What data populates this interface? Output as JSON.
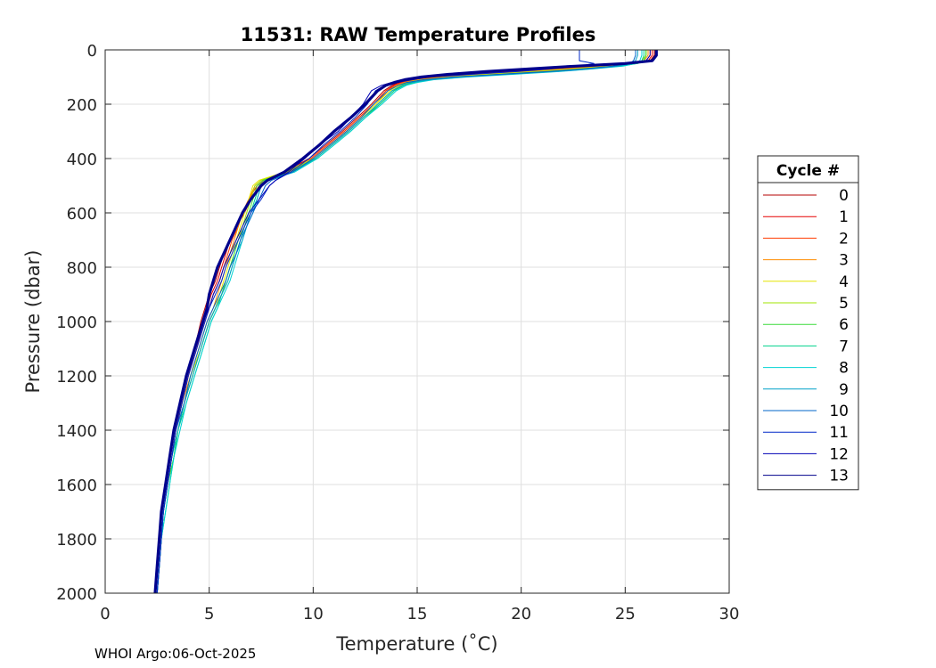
{
  "chart_data": {
    "type": "line",
    "title": "11531: RAW Temperature Profiles",
    "xlabel": "Temperature (˚C)",
    "ylabel": "Pressure (dbar)",
    "xlim": [
      0,
      30
    ],
    "ylim": [
      0,
      2000
    ],
    "y_reversed": true,
    "grid": true,
    "x_ticks": [
      0,
      5,
      10,
      15,
      20,
      25,
      30
    ],
    "y_ticks": [
      0,
      200,
      400,
      600,
      800,
      1000,
      1200,
      1400,
      1600,
      1800,
      2000
    ],
    "legend_title": "Cycle #",
    "legend_position": "outside-right",
    "profile_pressure": [
      0,
      20,
      40,
      50,
      60,
      70,
      80,
      90,
      100,
      110,
      120,
      130,
      150,
      200,
      250,
      300,
      350,
      400,
      450,
      480,
      500,
      550,
      600,
      650,
      700,
      750,
      800,
      850,
      900,
      950,
      1000,
      1100,
      1200,
      1300,
      1400,
      1500,
      1600,
      1700,
      1800,
      1900,
      2000
    ],
    "series": [
      {
        "name": "0",
        "color": "#b40000",
        "temperature": [
          26.4,
          26.4,
          26.2,
          25.0,
          23.0,
          21.0,
          19.0,
          17.0,
          15.6,
          14.6,
          14.1,
          13.8,
          13.4,
          12.8,
          12.1,
          11.4,
          10.6,
          9.8,
          8.6,
          7.6,
          7.3,
          6.9,
          6.6,
          6.3,
          6.0,
          5.7,
          5.5,
          5.3,
          5.0,
          4.8,
          4.6,
          4.3,
          4.0,
          3.7,
          3.4,
          3.2,
          3.0,
          2.8,
          2.7,
          2.6,
          2.5
        ]
      },
      {
        "name": "1",
        "color": "#e60000",
        "temperature": [
          26.3,
          26.3,
          26.1,
          25.2,
          23.4,
          21.5,
          19.4,
          17.3,
          15.8,
          14.8,
          14.2,
          13.9,
          13.5,
          12.9,
          12.2,
          11.5,
          10.7,
          9.9,
          8.7,
          7.8,
          7.4,
          7.0,
          6.7,
          6.3,
          6.0,
          5.8,
          5.6,
          5.4,
          5.1,
          4.9,
          4.7,
          4.4,
          4.0,
          3.7,
          3.4,
          3.2,
          3.0,
          2.8,
          2.7,
          2.6,
          2.5
        ]
      },
      {
        "name": "2",
        "color": "#ff3c00",
        "temperature": [
          26.2,
          26.2,
          26.0,
          25.3,
          23.8,
          21.9,
          19.8,
          17.6,
          16.0,
          14.9,
          14.3,
          14.0,
          13.5,
          12.9,
          12.2,
          11.5,
          10.7,
          9.9,
          8.6,
          7.7,
          7.3,
          6.9,
          6.6,
          6.4,
          6.1,
          5.9,
          5.7,
          5.5,
          5.2,
          5.0,
          4.8,
          4.4,
          4.0,
          3.7,
          3.4,
          3.2,
          3.0,
          2.8,
          2.7,
          2.6,
          2.5
        ]
      },
      {
        "name": "3",
        "color": "#ff8c00",
        "temperature": [
          26.1,
          26.1,
          25.9,
          25.4,
          24.0,
          22.2,
          20.2,
          17.9,
          16.2,
          15.0,
          14.4,
          14.0,
          13.6,
          13.0,
          12.3,
          11.6,
          10.8,
          10.0,
          8.8,
          7.5,
          7.2,
          6.9,
          6.6,
          6.4,
          6.2,
          6.0,
          5.8,
          5.6,
          5.4,
          5.2,
          4.9,
          4.5,
          4.1,
          3.7,
          3.4,
          3.2,
          3.0,
          2.8,
          2.7,
          2.6,
          2.5
        ]
      },
      {
        "name": "4",
        "color": "#e6e600",
        "temperature": [
          26.0,
          26.0,
          25.8,
          25.5,
          24.3,
          22.5,
          20.6,
          18.3,
          16.5,
          15.2,
          14.5,
          14.1,
          13.7,
          13.0,
          12.3,
          11.6,
          10.8,
          10.0,
          8.6,
          7.4,
          7.1,
          6.9,
          6.7,
          6.5,
          6.3,
          6.1,
          5.9,
          5.7,
          5.5,
          5.3,
          5.0,
          4.6,
          4.1,
          3.8,
          3.5,
          3.2,
          3.0,
          2.8,
          2.7,
          2.6,
          2.5
        ]
      },
      {
        "name": "5",
        "color": "#a0e600",
        "temperature": [
          26.0,
          26.0,
          25.8,
          25.5,
          24.5,
          22.8,
          21.0,
          18.7,
          16.8,
          15.4,
          14.6,
          14.2,
          13.8,
          13.1,
          12.4,
          11.7,
          10.9,
          10.1,
          8.7,
          7.5,
          7.2,
          7.0,
          6.8,
          6.6,
          6.4,
          6.2,
          6.0,
          5.8,
          5.6,
          5.3,
          5.0,
          4.6,
          4.2,
          3.8,
          3.5,
          3.3,
          3.0,
          2.8,
          2.7,
          2.6,
          2.5
        ]
      },
      {
        "name": "6",
        "color": "#3cdc3c",
        "temperature": [
          26.0,
          26.0,
          25.9,
          25.6,
          24.6,
          23.0,
          21.3,
          19.0,
          17.0,
          15.6,
          14.8,
          14.3,
          13.9,
          13.2,
          12.4,
          11.7,
          10.9,
          10.1,
          8.9,
          7.6,
          7.3,
          7.1,
          6.9,
          6.7,
          6.4,
          6.2,
          6.0,
          5.8,
          5.6,
          5.3,
          5.0,
          4.6,
          4.2,
          3.8,
          3.5,
          3.3,
          3.0,
          2.8,
          2.7,
          2.6,
          2.5
        ]
      },
      {
        "name": "7",
        "color": "#00d28c",
        "temperature": [
          25.9,
          25.9,
          25.8,
          25.6,
          24.8,
          23.2,
          21.5,
          19.3,
          17.2,
          15.7,
          14.9,
          14.4,
          13.9,
          13.2,
          12.5,
          11.8,
          11.0,
          10.2,
          9.0,
          7.7,
          7.4,
          7.2,
          7.0,
          6.7,
          6.5,
          6.3,
          6.1,
          5.9,
          5.6,
          5.4,
          5.1,
          4.7,
          4.3,
          3.9,
          3.5,
          3.3,
          3.1,
          2.9,
          2.7,
          2.6,
          2.5
        ]
      },
      {
        "name": "8",
        "color": "#00d2d2",
        "temperature": [
          25.8,
          25.8,
          25.7,
          25.5,
          24.9,
          23.5,
          21.8,
          19.6,
          17.4,
          15.8,
          15.0,
          14.5,
          14.0,
          13.3,
          12.5,
          11.8,
          11.0,
          10.2,
          9.1,
          7.8,
          7.5,
          7.3,
          7.1,
          6.8,
          6.6,
          6.4,
          6.2,
          6.0,
          5.7,
          5.4,
          5.1,
          4.7,
          4.3,
          3.9,
          3.6,
          3.3,
          3.1,
          2.9,
          2.7,
          2.6,
          2.5
        ]
      },
      {
        "name": "9",
        "color": "#00a0c8",
        "temperature": [
          25.6,
          25.6,
          25.5,
          25.3,
          24.7,
          23.4,
          21.6,
          19.3,
          17.1,
          15.6,
          14.7,
          14.3,
          13.8,
          13.1,
          12.4,
          11.7,
          10.9,
          10.1,
          9.0,
          7.8,
          7.5,
          7.3,
          7.0,
          6.8,
          6.6,
          6.3,
          6.1,
          5.9,
          5.6,
          5.3,
          5.0,
          4.6,
          4.2,
          3.8,
          3.5,
          3.2,
          3.0,
          2.8,
          2.7,
          2.6,
          2.5
        ]
      },
      {
        "name": "10",
        "color": "#0064c8",
        "temperature": [
          25.5,
          25.5,
          25.4,
          25.2,
          24.4,
          23.0,
          21.2,
          18.9,
          16.7,
          15.3,
          14.5,
          14.1,
          13.6,
          12.9,
          12.3,
          11.6,
          10.8,
          10.0,
          9.0,
          8.0,
          7.7,
          7.4,
          7.1,
          6.8,
          6.5,
          6.3,
          6.0,
          5.8,
          5.5,
          5.2,
          4.9,
          4.5,
          4.1,
          3.8,
          3.4,
          3.2,
          3.0,
          2.8,
          2.7,
          2.6,
          2.5
        ]
      },
      {
        "name": "11",
        "color": "#0028c8",
        "temperature": [
          22.8,
          22.8,
          22.8,
          23.5,
          22.8,
          21.5,
          19.8,
          17.6,
          15.6,
          14.8,
          14.0,
          13.5,
          13.0,
          12.6,
          12.0,
          11.3,
          10.5,
          9.8,
          8.9,
          8.2,
          7.9,
          7.5,
          7.0,
          6.7,
          6.4,
          6.1,
          5.8,
          5.6,
          5.3,
          5.0,
          4.8,
          4.4,
          4.0,
          3.7,
          3.4,
          3.2,
          3.0,
          2.8,
          2.7,
          2.6,
          2.5
        ]
      },
      {
        "name": "12",
        "color": "#0000b4",
        "temperature": [
          26.2,
          26.2,
          26.0,
          24.8,
          22.5,
          20.5,
          18.4,
          16.6,
          15.3,
          14.4,
          13.8,
          13.3,
          12.8,
          12.4,
          11.8,
          11.2,
          10.3,
          9.6,
          8.8,
          8.2,
          7.9,
          7.4,
          6.9,
          6.6,
          6.3,
          6.0,
          5.7,
          5.5,
          5.2,
          5.0,
          4.7,
          4.3,
          3.9,
          3.6,
          3.3,
          3.1,
          2.9,
          2.7,
          2.6,
          2.5,
          2.4
        ]
      },
      {
        "name": "13",
        "color": "#00008c",
        "temperature": [
          26.5,
          26.5,
          26.3,
          25.0,
          22.6,
          20.4,
          18.3,
          16.5,
          15.2,
          14.4,
          13.9,
          13.5,
          13.1,
          12.5,
          11.8,
          11.0,
          10.3,
          9.5,
          8.6,
          7.8,
          7.5,
          7.0,
          6.6,
          6.3,
          6.0,
          5.7,
          5.4,
          5.2,
          5.0,
          4.9,
          4.7,
          4.3,
          3.9,
          3.6,
          3.3,
          3.1,
          2.9,
          2.7,
          2.6,
          2.5,
          2.4
        ]
      }
    ]
  },
  "footer": "WHOI Argo:06-Oct-2025"
}
